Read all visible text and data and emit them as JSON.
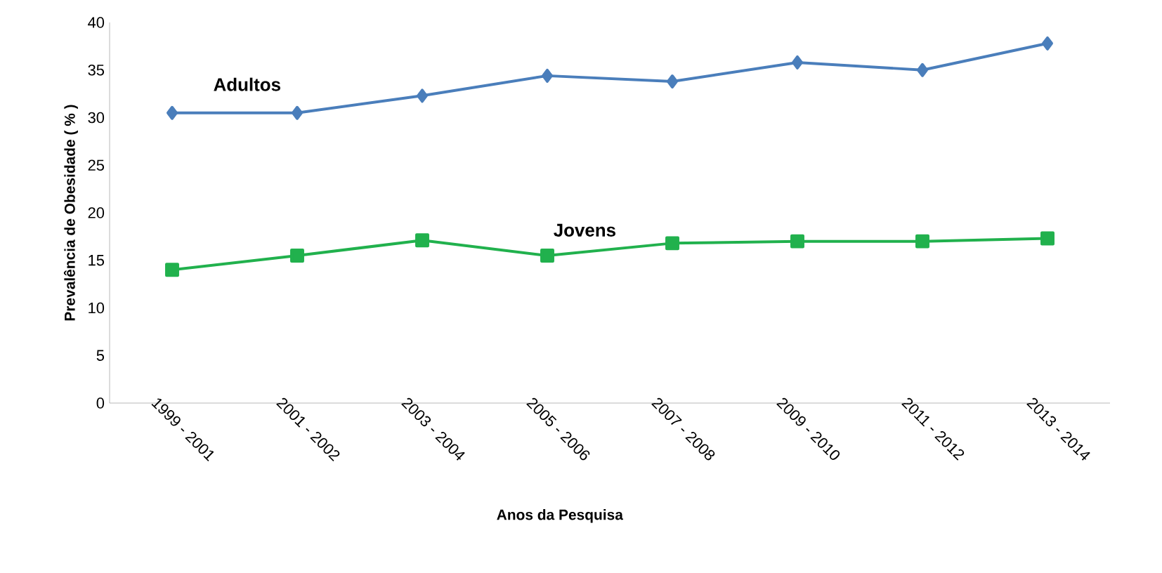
{
  "chart_data": {
    "type": "line",
    "xlabel": "Anos da Pesquisa",
    "ylabel": "Prevalência de Obesidade ( % )",
    "categories": [
      "1999 - 2001",
      "2001 - 2002",
      "2003 - 2004",
      "2005 - 2006",
      "2007 - 2008",
      "2009 - 2010",
      "2011 - 2012",
      "2013 - 2014"
    ],
    "series": [
      {
        "name": "Adultos",
        "color": "#4a7ebb",
        "marker": "diamond",
        "values": [
          30.5,
          30.5,
          32.3,
          34.4,
          33.8,
          35.8,
          35.0,
          37.8
        ]
      },
      {
        "name": "Jovens",
        "color": "#21b14d",
        "marker": "square",
        "values": [
          14.0,
          15.5,
          17.1,
          15.5,
          16.8,
          17.0,
          17.0,
          17.3
        ]
      }
    ],
    "ylim": [
      0,
      40
    ],
    "yticks": [
      0,
      5,
      10,
      15,
      20,
      25,
      30,
      35,
      40
    ],
    "grid": false,
    "legend": false,
    "line_style": "solid"
  }
}
